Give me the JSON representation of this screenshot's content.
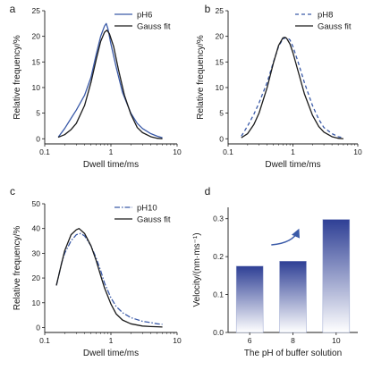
{
  "colors": {
    "data": "#3a5aa8",
    "fit": "#1a1a1a",
    "bar_top": "#2e3f95",
    "bar_bottom": "#ffffff"
  },
  "chart_data": [
    {
      "panel": "a",
      "type": "line",
      "xscale": "log",
      "xlabel": "Dwell time/ms",
      "ylabel": "Relative frequency/%",
      "xlim": [
        0.1,
        10
      ],
      "ylim": [
        -1,
        25
      ],
      "xticks": [
        0.1,
        1,
        10
      ],
      "xtick_labels": [
        "0.1",
        "1",
        "10"
      ],
      "yticks": [
        0,
        5,
        10,
        15,
        20,
        25
      ],
      "ytick_labels": [
        "0",
        "5",
        "10",
        "15",
        "20",
        "25"
      ],
      "legend_position": "top-right",
      "series": [
        {
          "name": "pH6",
          "style": "solid",
          "color": "#3a5aa8",
          "x": [
            0.16,
            0.2,
            0.25,
            0.3,
            0.4,
            0.5,
            0.6,
            0.7,
            0.8,
            0.85,
            0.9,
            1.0,
            1.2,
            1.5,
            2.0,
            2.5,
            3.0,
            4.0,
            5.0,
            6.0
          ],
          "y": [
            0.3,
            2.0,
            4.0,
            5.6,
            8.5,
            12.0,
            16.5,
            20.0,
            22.0,
            22.5,
            21.5,
            18.5,
            14.0,
            9.0,
            5.0,
            3.0,
            2.0,
            1.0,
            0.5,
            0.2
          ]
        },
        {
          "name": "Gauss fit",
          "style": "solid",
          "color": "#1a1a1a",
          "x": [
            0.16,
            0.2,
            0.25,
            0.3,
            0.4,
            0.5,
            0.6,
            0.7,
            0.8,
            0.87,
            0.95,
            1.1,
            1.3,
            1.6,
            2.0,
            2.5,
            3.0,
            4.0,
            5.0,
            6.0
          ],
          "y": [
            0.3,
            0.8,
            1.8,
            3.0,
            6.5,
            11.0,
            15.5,
            19.0,
            20.8,
            21.2,
            20.5,
            18.0,
            13.5,
            8.5,
            4.8,
            2.2,
            1.2,
            0.4,
            0.1,
            0.0
          ]
        }
      ]
    },
    {
      "panel": "b",
      "type": "line",
      "xscale": "log",
      "xlabel": "Dwell time/ms",
      "ylabel": "Relative frequency/%",
      "xlim": [
        0.1,
        10
      ],
      "ylim": [
        -1,
        25
      ],
      "xticks": [
        0.1,
        1,
        10
      ],
      "xtick_labels": [
        "0.1",
        "1",
        "10"
      ],
      "yticks": [
        0,
        5,
        10,
        15,
        20,
        25
      ],
      "ytick_labels": [
        "0",
        "5",
        "10",
        "15",
        "20",
        "25"
      ],
      "legend_position": "top-right",
      "series": [
        {
          "name": "pH8",
          "style": "dashed",
          "color": "#3a5aa8",
          "x": [
            0.16,
            0.2,
            0.25,
            0.3,
            0.4,
            0.5,
            0.6,
            0.7,
            0.8,
            0.9,
            1.0,
            1.2,
            1.5,
            2.0,
            2.5,
            3.0,
            4.0,
            5.0,
            6.0
          ],
          "y": [
            0.5,
            2.5,
            4.8,
            7.0,
            11.0,
            15.0,
            18.0,
            19.5,
            19.8,
            19.3,
            18.0,
            15.0,
            11.0,
            6.5,
            3.8,
            2.2,
            1.0,
            0.4,
            0.2
          ]
        },
        {
          "name": "Gauss fit",
          "style": "solid",
          "color": "#1a1a1a",
          "x": [
            0.16,
            0.2,
            0.25,
            0.3,
            0.4,
            0.5,
            0.6,
            0.7,
            0.75,
            0.8,
            0.9,
            1.0,
            1.2,
            1.5,
            2.0,
            2.5,
            3.0,
            4.0,
            5.0,
            6.0
          ],
          "y": [
            0.2,
            1.0,
            2.8,
            5.0,
            10.0,
            14.8,
            18.2,
            19.7,
            19.8,
            19.6,
            18.5,
            16.8,
            13.2,
            8.8,
            4.6,
            2.4,
            1.3,
            0.4,
            0.1,
            0.0
          ]
        }
      ]
    },
    {
      "panel": "c",
      "type": "line",
      "xscale": "log",
      "xlabel": "Dwell time/ms",
      "ylabel": "Relative frequency/%",
      "xlim": [
        0.1,
        10
      ],
      "ylim": [
        -2,
        50
      ],
      "xticks": [
        0.1,
        1,
        10
      ],
      "xtick_labels": [
        "0.1",
        "1",
        "10"
      ],
      "yticks": [
        0,
        10,
        20,
        30,
        40,
        50
      ],
      "ytick_labels": [
        "0",
        "10",
        "20",
        "30",
        "40",
        "50"
      ],
      "legend_position": "top-right",
      "series": [
        {
          "name": "pH10",
          "style": "dashdot",
          "color": "#3a5aa8",
          "x": [
            0.15,
            0.18,
            0.2,
            0.25,
            0.3,
            0.35,
            0.4,
            0.5,
            0.6,
            0.7,
            0.8,
            1.0,
            1.2,
            1.5,
            2.0,
            3.0,
            4.0,
            5.0,
            6.0
          ],
          "y": [
            17.0,
            26.0,
            30.0,
            35.0,
            37.5,
            38.0,
            37.0,
            33.0,
            28.0,
            23.0,
            18.0,
            12.0,
            8.5,
            6.0,
            4.0,
            2.5,
            2.0,
            1.5,
            1.3
          ]
        },
        {
          "name": "Gauss fit",
          "style": "solid",
          "color": "#1a1a1a",
          "x": [
            0.15,
            0.18,
            0.2,
            0.25,
            0.3,
            0.33,
            0.4,
            0.5,
            0.6,
            0.7,
            0.8,
            1.0,
            1.2,
            1.5,
            2.0,
            3.0,
            4.0,
            5.0,
            6.0
          ],
          "y": [
            17.0,
            26.0,
            31.0,
            37.5,
            39.5,
            40.0,
            38.0,
            33.0,
            27.0,
            21.0,
            16.0,
            9.5,
            5.5,
            3.0,
            1.5,
            0.6,
            0.4,
            0.3,
            0.2
          ]
        }
      ]
    },
    {
      "panel": "d",
      "type": "bar",
      "xlabel": "The pH of buffer solution",
      "ylabel": "Velocity/(nm·ms⁻¹)",
      "categories": [
        "6",
        "8",
        "10"
      ],
      "values": [
        0.175,
        0.188,
        0.298
      ],
      "ylim": [
        0,
        0.33
      ],
      "yticks": [
        0.0,
        0.1,
        0.2,
        0.3
      ],
      "ytick_labels": [
        "0.0",
        "0.1",
        "0.2",
        "0.3"
      ],
      "fill": "vertical gradient, dark blue top to white bottom",
      "annotation": {
        "type": "curved arrow",
        "color": "#3a5aa8",
        "direction": "up-right"
      }
    }
  ]
}
